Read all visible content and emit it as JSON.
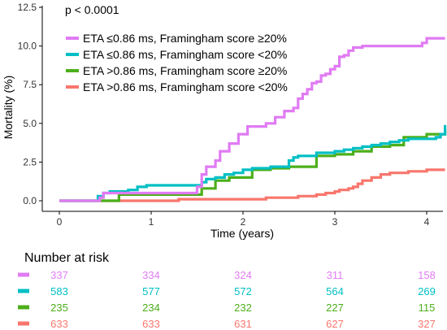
{
  "chart_data": {
    "type": "line",
    "step": true,
    "annotation": "p < 0.0001",
    "xlabel": "Time (years)",
    "ylabel": "Mortality (%)",
    "xlim": [
      0,
      4.2
    ],
    "ylim": [
      0,
      12.5
    ],
    "x_ticks": [
      0,
      1,
      2,
      3,
      4
    ],
    "x_tick_labels": [
      "0",
      "1",
      "2",
      "3",
      "4"
    ],
    "y_ticks": [
      0,
      2.5,
      5,
      7.5,
      10,
      12.5
    ],
    "y_tick_labels": [
      "0.0",
      "2.5",
      "5.0",
      "7.5",
      "10.0",
      "12.5"
    ],
    "grid": false,
    "legend_position": "top-left",
    "series": [
      {
        "name": "ETA ≤0.86 ms, Framingham score ≥20%",
        "color": "#E07BF3",
        "x": [
          0,
          0.44,
          0.48,
          1.5,
          1.55,
          1.6,
          1.7,
          1.75,
          1.85,
          1.95,
          2.05,
          2.25,
          2.35,
          2.45,
          2.55,
          2.6,
          2.65,
          2.7,
          2.75,
          2.8,
          2.85,
          2.9,
          2.95,
          3.0,
          3.05,
          3.1,
          3.15,
          3.2,
          3.3,
          3.4,
          3.5,
          3.55,
          3.6,
          3.65,
          3.7,
          3.75,
          3.8,
          3.85,
          3.9,
          3.95,
          4.0,
          4.05,
          4.2
        ],
        "y": [
          0,
          0.2,
          0.5,
          0.9,
          1.7,
          2.2,
          2.6,
          3.2,
          3.7,
          4.3,
          4.8,
          5.0,
          5.4,
          5.8,
          6.0,
          6.6,
          6.9,
          7.2,
          7.6,
          7.7,
          8.1,
          8.2,
          8.5,
          8.7,
          9.3,
          9.4,
          9.7,
          9.9,
          10.0,
          10.0,
          10.0,
          10.0,
          10.0,
          10.0,
          10.0,
          10.0,
          10.0,
          10.0,
          10.0,
          10.2,
          10.5,
          10.5,
          10.5
        ]
      },
      {
        "name": "ETA ≤0.86 ms, Framingham score <20%",
        "color": "#00BFC4",
        "x": [
          0,
          0.42,
          0.48,
          0.55,
          0.75,
          0.85,
          0.95,
          1.55,
          1.6,
          1.7,
          1.8,
          1.9,
          2.0,
          2.1,
          2.3,
          2.5,
          2.55,
          2.6,
          2.8,
          2.9,
          3.0,
          3.1,
          3.2,
          3.3,
          3.4,
          3.5,
          3.6,
          3.7,
          3.8,
          3.9,
          4.0,
          4.1,
          4.15,
          4.2
        ],
        "y": [
          0,
          0.3,
          0.5,
          0.6,
          0.7,
          0.9,
          1.0,
          1.2,
          1.4,
          1.5,
          1.7,
          1.8,
          2.0,
          2.1,
          2.2,
          2.6,
          2.8,
          2.9,
          3.1,
          3.1,
          3.2,
          3.3,
          3.4,
          3.5,
          3.6,
          3.7,
          3.8,
          3.9,
          4.0,
          4.0,
          4.0,
          4.1,
          4.3,
          4.9
        ]
      },
      {
        "name": "ETA >0.86 ms, Framingham score ≥20%",
        "color": "#4CAF1A",
        "x": [
          0,
          0.65,
          1.55,
          1.7,
          1.85,
          2.1,
          2.3,
          2.5,
          2.8,
          3.0,
          3.2,
          3.4,
          3.6,
          3.75,
          4.0,
          4.2
        ],
        "y": [
          0,
          0.4,
          0.8,
          1.3,
          1.5,
          2.0,
          2.1,
          2.2,
          2.9,
          3.0,
          3.2,
          3.5,
          3.6,
          4.1,
          4.3,
          4.6
        ]
      },
      {
        "name": "ETA >0.86 ms, Framingham score <20%",
        "color": "#F8766D",
        "x": [
          0,
          1.3,
          2.25,
          2.6,
          2.8,
          2.9,
          3.0,
          3.05,
          3.15,
          3.2,
          3.25,
          3.3,
          3.4,
          3.5,
          3.6,
          3.7,
          3.8,
          4.0,
          4.2
        ],
        "y": [
          0,
          0.1,
          0.2,
          0.3,
          0.4,
          0.5,
          0.6,
          0.7,
          0.8,
          0.9,
          1.1,
          1.3,
          1.5,
          1.7,
          1.8,
          1.8,
          1.9,
          2.0,
          2.0
        ]
      }
    ],
    "risk_table": {
      "title": "Number at risk",
      "rows": [
        {
          "color": "#E07BF3",
          "values": [
            "337",
            "334",
            "324",
            "311",
            "158"
          ]
        },
        {
          "color": "#00BFC4",
          "values": [
            "583",
            "577",
            "572",
            "564",
            "269"
          ]
        },
        {
          "color": "#4CAF1A",
          "values": [
            "235",
            "234",
            "232",
            "227",
            "115"
          ]
        },
        {
          "color": "#F8766D",
          "values": [
            "633",
            "633",
            "631",
            "627",
            "327"
          ]
        }
      ]
    }
  }
}
